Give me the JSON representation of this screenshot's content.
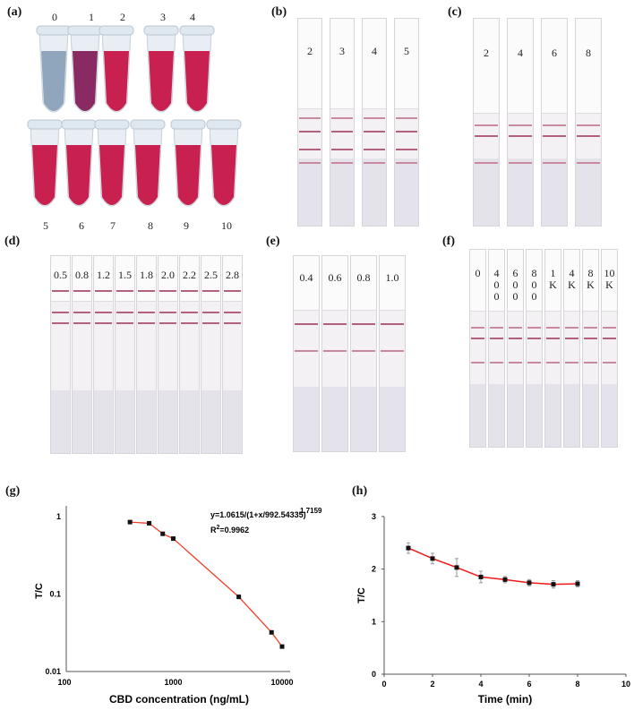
{
  "panels": {
    "a": "(a)",
    "b": "(b)",
    "c": "(c)",
    "d": "(d)",
    "e": "(e)",
    "f": "(f)",
    "g": "(g)",
    "h": "(h)"
  },
  "tubes": {
    "labels": [
      "0",
      "1",
      "2",
      "3",
      "4",
      "5",
      "6",
      "7",
      "8",
      "9",
      "10"
    ],
    "colors": {
      "blue": "#8fa6bd",
      "purple": "#8a2a62",
      "magenta": "#c8204f"
    }
  },
  "strips_b": [
    "2",
    "3",
    "4",
    "5"
  ],
  "strips_c": [
    "2",
    "4",
    "6",
    "8"
  ],
  "strips_d": [
    "0.5",
    "0.8",
    "1.2",
    "1.5",
    "1.8",
    "2.0",
    "2.2",
    "2.5",
    "2.8"
  ],
  "strips_e": [
    "0.4",
    "0.6",
    "0.8",
    "1.0"
  ],
  "strips_f": [
    "0",
    "4\n0\n0",
    "6\n0\n0",
    "8\n0\n0",
    "1\nK",
    "4\nK",
    "8\nK",
    "10\nK"
  ],
  "chart_data": [
    {
      "type": "scatter",
      "scale": "log-log",
      "xlabel": "CBD concentration (ng/mL)",
      "ylabel": "T/C",
      "xlim": [
        100,
        10000
      ],
      "ylim": [
        0.01,
        1
      ],
      "xticks": [
        "100",
        "1000",
        "10000"
      ],
      "yticks": [
        "0.01",
        "0.1",
        "1"
      ],
      "equation": "y=1.0615/(1+x/992.54335)",
      "equation_exp": "1.71591",
      "r2_prefix": "R",
      "r2_sup": "2",
      "r2_value": "=0.9962",
      "x": [
        400,
        600,
        800,
        1000,
        4000,
        8000,
        10000
      ],
      "y": [
        0.85,
        0.82,
        0.6,
        0.52,
        0.092,
        0.032,
        0.021
      ],
      "fit_color": "#f0402a"
    },
    {
      "type": "line",
      "xlabel": "Time (min)",
      "ylabel": "T/C",
      "xlim": [
        0,
        10
      ],
      "ylim": [
        0,
        3
      ],
      "xticks": [
        "0",
        "2",
        "4",
        "6",
        "8",
        "10"
      ],
      "yticks": [
        "0",
        "1",
        "2",
        "3"
      ],
      "x": [
        1,
        2,
        3,
        4,
        5,
        6,
        7,
        8
      ],
      "y": [
        2.4,
        2.2,
        2.03,
        1.85,
        1.8,
        1.74,
        1.71,
        1.72
      ],
      "err": [
        0.1,
        0.1,
        0.17,
        0.11,
        0.06,
        0.06,
        0.07,
        0.06
      ],
      "line_color": "#f01818"
    }
  ]
}
